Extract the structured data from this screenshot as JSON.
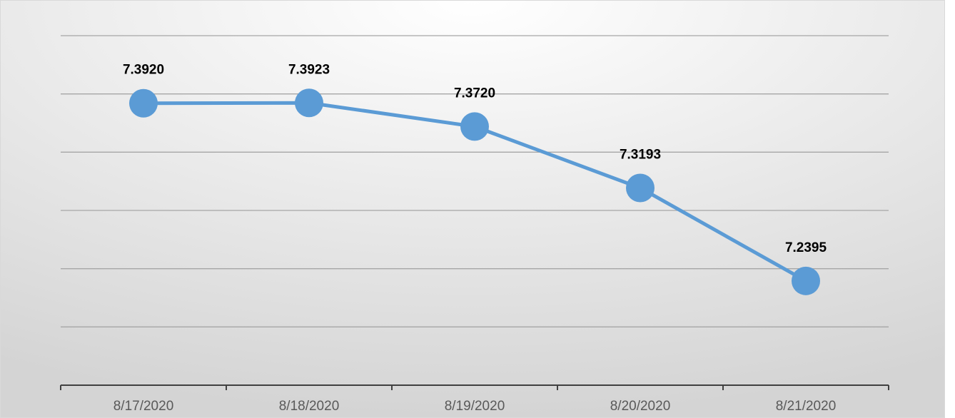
{
  "chart_data": {
    "type": "line",
    "categories": [
      "8/17/2020",
      "8/18/2020",
      "8/19/2020",
      "8/20/2020",
      "8/21/2020"
    ],
    "series": [
      {
        "color": "#5b9bd5",
        "values": [
          7.392,
          7.3923,
          7.372,
          7.3193,
          7.2395
        ],
        "value_labels": [
          "7.3920",
          "7.3923",
          "7.3720",
          "7.3193",
          "7.2395"
        ]
      }
    ],
    "ylim": [
      7.15,
      7.45
    ],
    "yticks": [
      7.2,
      7.25,
      7.3,
      7.35,
      7.4,
      7.45
    ],
    "grid": true
  }
}
